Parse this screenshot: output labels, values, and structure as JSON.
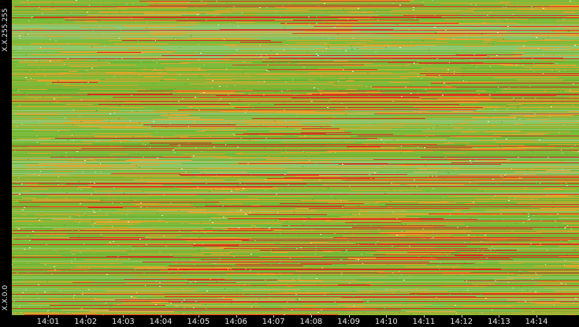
{
  "axis": {
    "y_top_label": "X.X.255.255",
    "y_bottom_label": "X.X.0.0"
  },
  "chart_data": {
    "type": "heatmap",
    "x_tick_labels": [
      "14:01",
      "14:02",
      "14:03",
      "14:04",
      "14:05",
      "14:06",
      "14:07",
      "14:08",
      "14:09",
      "14:10",
      "14:11",
      "14:12",
      "14:13",
      "14:14"
    ],
    "y_range_labels": [
      "X.X.0.0",
      "X.X.255.255"
    ],
    "colors": {
      "background": "#000000",
      "low": "#9fd6a6",
      "medium_low": "#7dbb3a",
      "medium": "#5fa82a",
      "high": "#e8a32a",
      "very_high": "#e0201a",
      "white_points": "#ffffff"
    }
  }
}
